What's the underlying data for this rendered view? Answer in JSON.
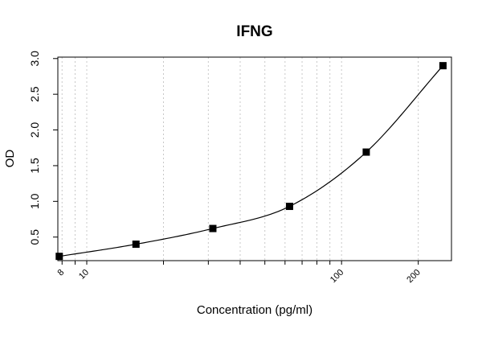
{
  "chart_data": {
    "type": "scatter",
    "title": "IFNG",
    "xlabel": "Concentration (pg/ml)",
    "ylabel": "OD",
    "x_scale": "log",
    "xlim": [
      7.7,
      270
    ],
    "ylim": [
      0.17,
      3.02
    ],
    "grid": {
      "x_minor_vertical_dotted": true,
      "horizontal": false
    },
    "x_ticks": [
      8,
      10,
      100,
      200
    ],
    "x_tick_labels": [
      "8",
      "10",
      "100",
      "200"
    ],
    "x_grid_values": [
      8,
      9,
      10,
      20,
      30,
      40,
      50,
      60,
      70,
      80,
      90,
      100,
      200
    ],
    "y_ticks": [
      0.5,
      1.0,
      1.5,
      2.0,
      2.5,
      3.0
    ],
    "y_tick_labels": [
      "0.5",
      "1.0",
      "1.5",
      "2.0",
      "2.5",
      "3.0"
    ],
    "series": [
      {
        "marker": "square",
        "color": "#000000",
        "x": [
          7.8,
          15.6,
          31.25,
          62.5,
          125,
          250
        ],
        "y": [
          0.23,
          0.4,
          0.62,
          0.93,
          1.69,
          2.9
        ]
      }
    ],
    "fit_curve": {
      "type": "smooth curve",
      "color": "#000000"
    }
  }
}
